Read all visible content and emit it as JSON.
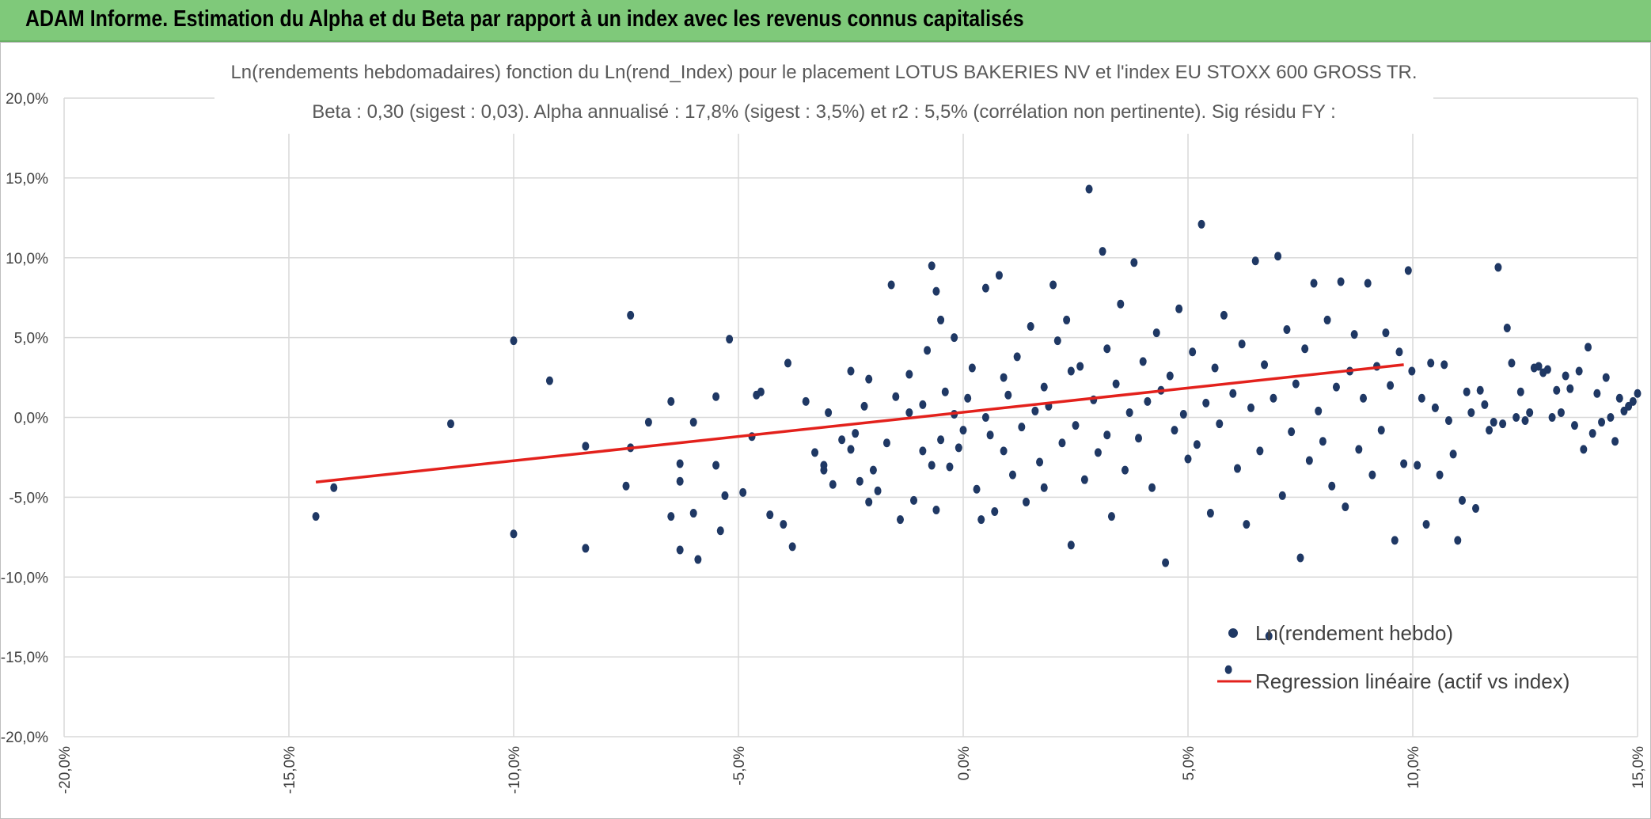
{
  "header": {
    "title": "ADAM Informe. Estimation du Alpha et du Beta par rapport à un index avec les revenus connus capitalisés"
  },
  "colors": {
    "banner": "#7fc97a",
    "points": "#1f3864",
    "regression": "#e3211c",
    "grid": "#d9d9d9"
  },
  "chart_data": {
    "type": "scatter",
    "title": "Ln(rendements hebdomadaires) fonction du Ln(rend_Index) pour le placement LOTUS BAKERIES NV et l'index EU STOXX 600 GROSS TR.",
    "subtitle": "Beta : 0,30 (sigest : 0,03).  Alpha annualisé : 17,8% (sigest : 3,5%) et r2 : 5,5% (corrélation non pertinente). Sig résidu FY :",
    "xlim": [
      -0.2,
      0.15
    ],
    "ylim": [
      -0.2,
      0.2
    ],
    "x_ticks": [
      -0.2,
      -0.15,
      -0.1,
      -0.05,
      0.0,
      0.05,
      0.1,
      0.15
    ],
    "x_tick_labels": [
      "-20,0%",
      "-15,0%",
      "-10,0%",
      "-5,0%",
      "0,0%",
      "5,0%",
      "10,0%",
      "15,0%"
    ],
    "y_ticks": [
      0.2,
      0.15,
      0.1,
      0.05,
      0.0,
      -0.05,
      -0.1,
      -0.15,
      -0.2
    ],
    "y_tick_labels": [
      "20,0%",
      "15,0%",
      "10,0%",
      "5,0%",
      "0,0%",
      "-5,0%",
      "-10,0%",
      "-15,0%",
      "-20,0%"
    ],
    "grid": true,
    "legend_position": "bottom-right",
    "series": [
      {
        "name": "Ln(rendement hebdo)",
        "kind": "scatter",
        "points": [
          [
            -0.144,
            -0.062
          ],
          [
            -0.14,
            -0.044
          ],
          [
            -0.114,
            -0.004
          ],
          [
            -0.1,
            0.048
          ],
          [
            -0.1,
            -0.073
          ],
          [
            -0.092,
            0.023
          ],
          [
            -0.084,
            -0.018
          ],
          [
            -0.084,
            -0.082
          ],
          [
            -0.075,
            -0.043
          ],
          [
            -0.074,
            0.064
          ],
          [
            -0.074,
            -0.019
          ],
          [
            -0.07,
            -0.003
          ],
          [
            -0.065,
            -0.062
          ],
          [
            -0.065,
            0.01
          ],
          [
            -0.063,
            -0.029
          ],
          [
            -0.063,
            -0.083
          ],
          [
            -0.063,
            -0.04
          ],
          [
            -0.06,
            -0.06
          ],
          [
            -0.06,
            -0.003
          ],
          [
            -0.059,
            -0.089
          ],
          [
            -0.055,
            -0.03
          ],
          [
            -0.055,
            0.013
          ],
          [
            -0.054,
            -0.071
          ],
          [
            -0.053,
            -0.049
          ],
          [
            -0.052,
            0.049
          ],
          [
            -0.049,
            -0.047
          ],
          [
            -0.047,
            -0.012
          ],
          [
            -0.046,
            0.014
          ],
          [
            -0.045,
            0.016
          ],
          [
            -0.043,
            -0.061
          ],
          [
            -0.04,
            -0.067
          ],
          [
            -0.039,
            0.034
          ],
          [
            -0.038,
            -0.081
          ],
          [
            -0.035,
            0.01
          ],
          [
            -0.033,
            -0.022
          ],
          [
            -0.031,
            -0.03
          ],
          [
            -0.031,
            -0.033
          ],
          [
            -0.03,
            0.003
          ],
          [
            -0.029,
            -0.042
          ],
          [
            -0.027,
            -0.014
          ],
          [
            -0.025,
            0.029
          ],
          [
            -0.025,
            -0.02
          ],
          [
            -0.024,
            -0.01
          ],
          [
            -0.023,
            -0.04
          ],
          [
            -0.022,
            0.007
          ],
          [
            -0.021,
            0.024
          ],
          [
            -0.021,
            -0.053
          ],
          [
            -0.02,
            -0.033
          ],
          [
            -0.019,
            -0.046
          ],
          [
            -0.017,
            -0.016
          ],
          [
            -0.016,
            0.083
          ],
          [
            -0.015,
            0.013
          ],
          [
            -0.014,
            -0.064
          ],
          [
            -0.012,
            0.003
          ],
          [
            -0.012,
            0.027
          ],
          [
            -0.011,
            -0.052
          ],
          [
            -0.009,
            -0.021
          ],
          [
            -0.009,
            0.008
          ],
          [
            -0.008,
            0.042
          ],
          [
            -0.007,
            -0.03
          ],
          [
            -0.007,
            0.095
          ],
          [
            -0.006,
            -0.058
          ],
          [
            -0.006,
            0.079
          ],
          [
            -0.005,
            0.061
          ],
          [
            -0.005,
            -0.014
          ],
          [
            -0.004,
            0.016
          ],
          [
            -0.003,
            -0.031
          ],
          [
            -0.002,
            0.05
          ],
          [
            -0.002,
            0.002
          ],
          [
            -0.001,
            -0.019
          ],
          [
            0.0,
            -0.008
          ],
          [
            0.001,
            0.012
          ],
          [
            0.002,
            0.031
          ],
          [
            0.003,
            -0.045
          ],
          [
            0.004,
            -0.064
          ],
          [
            0.005,
            0.081
          ],
          [
            0.005,
            0.0
          ],
          [
            0.006,
            -0.011
          ],
          [
            0.007,
            -0.059
          ],
          [
            0.008,
            0.089
          ],
          [
            0.009,
            0.025
          ],
          [
            0.009,
            -0.021
          ],
          [
            0.01,
            0.014
          ],
          [
            0.011,
            -0.036
          ],
          [
            0.012,
            0.038
          ],
          [
            0.013,
            -0.006
          ],
          [
            0.014,
            -0.053
          ],
          [
            0.015,
            0.057
          ],
          [
            0.016,
            0.004
          ],
          [
            0.017,
            -0.028
          ],
          [
            0.018,
            0.019
          ],
          [
            0.018,
            -0.044
          ],
          [
            0.019,
            0.007
          ],
          [
            0.02,
            0.083
          ],
          [
            0.021,
            0.048
          ],
          [
            0.022,
            -0.016
          ],
          [
            0.023,
            0.061
          ],
          [
            0.024,
            0.029
          ],
          [
            0.024,
            -0.08
          ],
          [
            0.025,
            -0.005
          ],
          [
            0.026,
            0.032
          ],
          [
            0.027,
            -0.039
          ],
          [
            0.028,
            0.143
          ],
          [
            0.029,
            0.011
          ],
          [
            0.03,
            -0.022
          ],
          [
            0.031,
            0.104
          ],
          [
            0.032,
            0.043
          ],
          [
            0.032,
            -0.011
          ],
          [
            0.033,
            -0.062
          ],
          [
            0.034,
            0.021
          ],
          [
            0.035,
            0.071
          ],
          [
            0.036,
            -0.033
          ],
          [
            0.037,
            0.003
          ],
          [
            0.038,
            0.097
          ],
          [
            0.039,
            -0.013
          ],
          [
            0.04,
            0.035
          ],
          [
            0.041,
            0.01
          ],
          [
            0.042,
            -0.044
          ],
          [
            0.043,
            0.053
          ],
          [
            0.044,
            0.017
          ],
          [
            0.045,
            -0.091
          ],
          [
            0.046,
            0.026
          ],
          [
            0.047,
            -0.008
          ],
          [
            0.048,
            0.068
          ],
          [
            0.049,
            0.002
          ],
          [
            0.05,
            -0.026
          ],
          [
            0.051,
            0.041
          ],
          [
            0.052,
            -0.017
          ],
          [
            0.053,
            0.121
          ],
          [
            0.054,
            0.009
          ],
          [
            0.055,
            -0.06
          ],
          [
            0.056,
            0.031
          ],
          [
            0.057,
            -0.004
          ],
          [
            0.058,
            0.064
          ],
          [
            0.059,
            -0.158
          ],
          [
            0.06,
            0.015
          ],
          [
            0.061,
            -0.032
          ],
          [
            0.062,
            0.046
          ],
          [
            0.063,
            -0.067
          ],
          [
            0.064,
            0.006
          ],
          [
            0.065,
            0.098
          ],
          [
            0.066,
            -0.021
          ],
          [
            0.067,
            0.033
          ],
          [
            0.068,
            -0.137
          ],
          [
            0.069,
            0.012
          ],
          [
            0.07,
            0.101
          ],
          [
            0.071,
            -0.049
          ],
          [
            0.072,
            0.055
          ],
          [
            0.073,
            -0.009
          ],
          [
            0.074,
            0.021
          ],
          [
            0.075,
            -0.088
          ],
          [
            0.076,
            0.043
          ],
          [
            0.077,
            -0.027
          ],
          [
            0.078,
            0.084
          ],
          [
            0.079,
            0.004
          ],
          [
            0.08,
            -0.015
          ],
          [
            0.081,
            0.061
          ],
          [
            0.082,
            -0.043
          ],
          [
            0.083,
            0.019
          ],
          [
            0.084,
            0.085
          ],
          [
            0.085,
            -0.056
          ],
          [
            0.086,
            0.029
          ],
          [
            0.087,
            0.052
          ],
          [
            0.088,
            -0.02
          ],
          [
            0.089,
            0.012
          ],
          [
            0.09,
            0.084
          ],
          [
            0.091,
            -0.036
          ],
          [
            0.092,
            0.032
          ],
          [
            0.093,
            -0.008
          ],
          [
            0.094,
            0.053
          ],
          [
            0.095,
            0.02
          ],
          [
            0.096,
            -0.077
          ],
          [
            0.097,
            0.041
          ],
          [
            0.098,
            -0.029
          ],
          [
            0.099,
            0.092
          ],
          [
            0.0998,
            0.029
          ],
          [
            0.101,
            -0.03
          ],
          [
            0.102,
            0.012
          ],
          [
            0.103,
            -0.067
          ],
          [
            0.104,
            0.034
          ],
          [
            0.105,
            0.006
          ],
          [
            0.106,
            -0.036
          ],
          [
            0.107,
            0.033
          ],
          [
            0.108,
            -0.002
          ],
          [
            0.109,
            -0.023
          ],
          [
            0.11,
            -0.077
          ],
          [
            0.111,
            -0.052
          ],
          [
            0.112,
            0.016
          ],
          [
            0.113,
            0.003
          ],
          [
            0.114,
            -0.057
          ],
          [
            0.115,
            0.017
          ],
          [
            0.116,
            0.008
          ],
          [
            0.117,
            -0.008
          ],
          [
            0.118,
            -0.003
          ],
          [
            0.119,
            0.094
          ],
          [
            0.12,
            -0.004
          ],
          [
            0.121,
            0.056
          ],
          [
            0.122,
            0.034
          ],
          [
            0.123,
            0.0
          ],
          [
            0.124,
            0.016
          ],
          [
            0.125,
            -0.002
          ],
          [
            0.126,
            0.003
          ],
          [
            0.127,
            0.031
          ],
          [
            0.128,
            0.032
          ],
          [
            0.129,
            0.028
          ],
          [
            0.13,
            0.03
          ],
          [
            0.131,
            0.0
          ],
          [
            0.132,
            0.017
          ],
          [
            0.133,
            0.003
          ],
          [
            0.134,
            0.026
          ],
          [
            0.135,
            0.018
          ],
          [
            0.136,
            -0.005
          ],
          [
            0.137,
            0.029
          ],
          [
            0.138,
            -0.02
          ],
          [
            0.139,
            0.044
          ],
          [
            0.14,
            -0.01
          ],
          [
            0.141,
            0.015
          ],
          [
            0.142,
            -0.003
          ],
          [
            0.143,
            0.025
          ],
          [
            0.144,
            0.0
          ],
          [
            0.145,
            -0.015
          ],
          [
            0.146,
            0.012
          ],
          [
            0.147,
            0.004
          ],
          [
            0.148,
            0.007
          ],
          [
            0.149,
            0.01
          ],
          [
            0.15,
            0.015
          ]
        ]
      },
      {
        "name": "Regression linéaire (actif vs index)",
        "kind": "line",
        "points": [
          [
            -0.144,
            -0.0405
          ],
          [
            0.098,
            0.033
          ]
        ]
      }
    ]
  }
}
